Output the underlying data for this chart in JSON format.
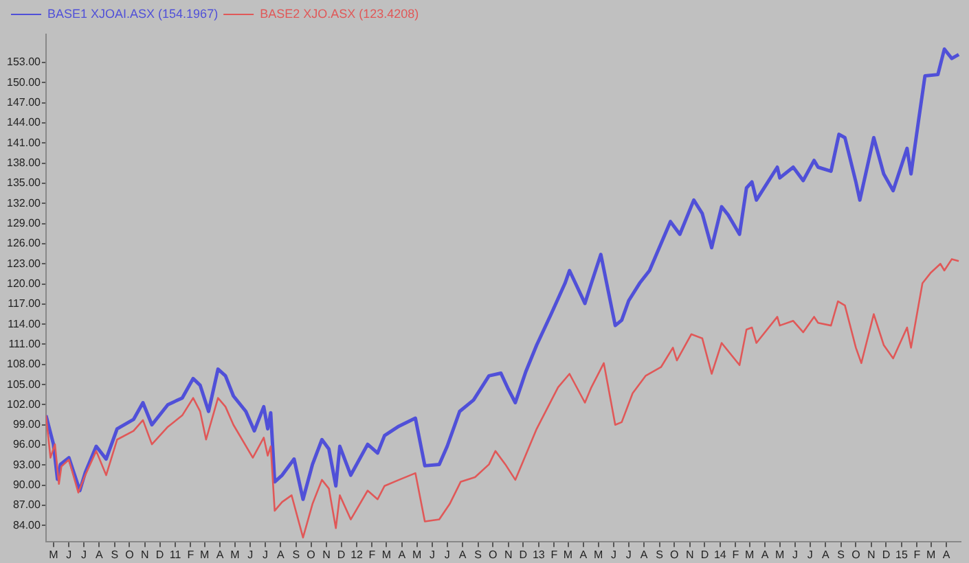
{
  "chart_data": {
    "type": "line",
    "legend": "top left",
    "grid": false,
    "marker": "none",
    "line_style": "solid",
    "xlim": [
      "2010-04-16",
      "2015-04-30"
    ],
    "ylim": [
      81.6,
      157.2
    ],
    "yticks": [
      {
        "value": 84,
        "label": "84.00"
      },
      {
        "value": 87,
        "label": "87.00"
      },
      {
        "value": 90,
        "label": "90.00"
      },
      {
        "value": 93,
        "label": "93.00"
      },
      {
        "value": 96,
        "label": "96.00"
      },
      {
        "value": 99,
        "label": "99.00"
      },
      {
        "value": 102,
        "label": "102.00"
      },
      {
        "value": 105,
        "label": "105.00"
      },
      {
        "value": 108,
        "label": "108.00"
      },
      {
        "value": 111,
        "label": "111.00"
      },
      {
        "value": 114,
        "label": "114.00"
      },
      {
        "value": 117,
        "label": "117.00"
      },
      {
        "value": 120,
        "label": "120.00"
      },
      {
        "value": 123,
        "label": "123.00"
      },
      {
        "value": 126,
        "label": "126.00"
      },
      {
        "value": 129,
        "label": "129.00"
      },
      {
        "value": 132,
        "label": "132.00"
      },
      {
        "value": 135,
        "label": "135.00"
      },
      {
        "value": 138,
        "label": "138.00"
      },
      {
        "value": 141,
        "label": "141.00"
      },
      {
        "value": 144,
        "label": "144.00"
      },
      {
        "value": 147,
        "label": "147.00"
      },
      {
        "value": 150,
        "label": "150.00"
      },
      {
        "value": 153,
        "label": "153.00"
      }
    ],
    "xticks": [
      {
        "value": "2010-05",
        "label": "M"
      },
      {
        "value": "2010-06",
        "label": "J"
      },
      {
        "value": "2010-07",
        "label": "J"
      },
      {
        "value": "2010-08",
        "label": "A"
      },
      {
        "value": "2010-09",
        "label": "S"
      },
      {
        "value": "2010-10",
        "label": "O"
      },
      {
        "value": "2010-11",
        "label": "N"
      },
      {
        "value": "2010-12",
        "label": "D"
      },
      {
        "value": "2011-01",
        "label": "11"
      },
      {
        "value": "2011-02",
        "label": "F"
      },
      {
        "value": "2011-03",
        "label": "M"
      },
      {
        "value": "2011-04",
        "label": "A"
      },
      {
        "value": "2011-05",
        "label": "M"
      },
      {
        "value": "2011-06",
        "label": "J"
      },
      {
        "value": "2011-07",
        "label": "J"
      },
      {
        "value": "2011-08",
        "label": "A"
      },
      {
        "value": "2011-09",
        "label": "S"
      },
      {
        "value": "2011-10",
        "label": "O"
      },
      {
        "value": "2011-11",
        "label": "N"
      },
      {
        "value": "2011-12",
        "label": "D"
      },
      {
        "value": "2012-01",
        "label": "12"
      },
      {
        "value": "2012-02",
        "label": "F"
      },
      {
        "value": "2012-03",
        "label": "M"
      },
      {
        "value": "2012-04",
        "label": "A"
      },
      {
        "value": "2012-05",
        "label": "M"
      },
      {
        "value": "2012-06",
        "label": "J"
      },
      {
        "value": "2012-07",
        "label": "J"
      },
      {
        "value": "2012-08",
        "label": "A"
      },
      {
        "value": "2012-09",
        "label": "S"
      },
      {
        "value": "2012-10",
        "label": "O"
      },
      {
        "value": "2012-11",
        "label": "N"
      },
      {
        "value": "2012-12",
        "label": "D"
      },
      {
        "value": "2013-01",
        "label": "13"
      },
      {
        "value": "2013-02",
        "label": "F"
      },
      {
        "value": "2013-03",
        "label": "M"
      },
      {
        "value": "2013-04",
        "label": "A"
      },
      {
        "value": "2013-05",
        "label": "M"
      },
      {
        "value": "2013-06",
        "label": "J"
      },
      {
        "value": "2013-07",
        "label": "J"
      },
      {
        "value": "2013-08",
        "label": "A"
      },
      {
        "value": "2013-09",
        "label": "S"
      },
      {
        "value": "2013-10",
        "label": "O"
      },
      {
        "value": "2013-11",
        "label": "N"
      },
      {
        "value": "2013-12",
        "label": "D"
      },
      {
        "value": "2014-01",
        "label": "14"
      },
      {
        "value": "2014-02",
        "label": "F"
      },
      {
        "value": "2014-03",
        "label": "M"
      },
      {
        "value": "2014-04",
        "label": "A"
      },
      {
        "value": "2014-05",
        "label": "M"
      },
      {
        "value": "2014-06",
        "label": "J"
      },
      {
        "value": "2014-07",
        "label": "J"
      },
      {
        "value": "2014-08",
        "label": "A"
      },
      {
        "value": "2014-09",
        "label": "S"
      },
      {
        "value": "2014-10",
        "label": "O"
      },
      {
        "value": "2014-11",
        "label": "N"
      },
      {
        "value": "2014-12",
        "label": "D"
      },
      {
        "value": "2015-01",
        "label": "15"
      },
      {
        "value": "2015-02",
        "label": "F"
      },
      {
        "value": "2015-03",
        "label": "M"
      },
      {
        "value": "2015-04",
        "label": "A"
      }
    ],
    "series": [
      {
        "name": "BASE1 XJOAI.ASX (154.1967)",
        "color": "#5050d8",
        "x": [
          "2010-04-16",
          "2010-05-01",
          "2010-05-09",
          "2010-05-15",
          "2010-06-01",
          "2010-06-23",
          "2010-07-04",
          "2010-07-26",
          "2010-08-15",
          "2010-09-06",
          "2010-10-09",
          "2010-10-28",
          "2010-11-15",
          "2010-12-17",
          "2011-01-15",
          "2011-02-06",
          "2011-02-20",
          "2011-03-09",
          "2011-03-28",
          "2011-04-12",
          "2011-04-28",
          "2011-05-23",
          "2011-06-09",
          "2011-06-28",
          "2011-07-06",
          "2011-07-12",
          "2011-07-20",
          "2011-08-04",
          "2011-08-28",
          "2011-09-15",
          "2011-10-04",
          "2011-10-23",
          "2011-11-06",
          "2011-11-20",
          "2011-11-28",
          "2011-12-20",
          "2012-01-23",
          "2012-02-12",
          "2012-02-26",
          "2012-03-26",
          "2012-04-28",
          "2012-05-17",
          "2012-06-15",
          "2012-07-01",
          "2012-07-26",
          "2012-08-23",
          "2012-09-23",
          "2012-10-17",
          "2012-11-01",
          "2012-11-15",
          "2012-12-06",
          "2012-12-28",
          "2013-01-26",
          "2013-02-23",
          "2013-03-04",
          "2013-04-04",
          "2013-04-17",
          "2013-05-06",
          "2013-06-04",
          "2013-06-17",
          "2013-07-01",
          "2013-07-23",
          "2013-08-12",
          "2013-09-23",
          "2013-10-12",
          "2013-11-09",
          "2013-11-26",
          "2013-12-15",
          "2014-01-04",
          "2014-01-17",
          "2014-02-09",
          "2014-02-23",
          "2014-03-06",
          "2014-03-15",
          "2014-04-26",
          "2014-05-01",
          "2014-05-28",
          "2014-06-17",
          "2014-07-09",
          "2014-07-17",
          "2014-08-12",
          "2014-08-28",
          "2014-09-09",
          "2014-10-01",
          "2014-10-09",
          "2014-11-06",
          "2014-11-26",
          "2014-12-15",
          "2015-01-12",
          "2015-01-20",
          "2015-02-04",
          "2015-02-17",
          "2015-03-15",
          "2015-03-28",
          "2015-04-12",
          "2015-04-26"
        ],
        "values": [
          100.4,
          96.1,
          90.9,
          93.1,
          94.1,
          89.2,
          91.9,
          95.8,
          93.9,
          98.4,
          99.8,
          102.3,
          99.0,
          102.0,
          103.0,
          105.9,
          104.9,
          101.0,
          107.3,
          106.3,
          103.3,
          101.0,
          98.1,
          101.7,
          98.4,
          100.8,
          90.5,
          91.5,
          93.9,
          87.9,
          93.1,
          96.8,
          95.4,
          89.9,
          95.8,
          91.5,
          96.1,
          94.8,
          97.4,
          98.8,
          100.0,
          92.9,
          93.1,
          95.8,
          101.0,
          102.7,
          106.3,
          106.7,
          104.3,
          102.3,
          106.9,
          110.9,
          115.5,
          120.1,
          122.0,
          117.1,
          120.1,
          124.4,
          113.8,
          114.6,
          117.5,
          120.1,
          122.0,
          129.3,
          127.4,
          132.5,
          130.5,
          125.4,
          131.5,
          130.3,
          127.4,
          134.3,
          135.2,
          132.5,
          137.4,
          135.8,
          137.4,
          135.4,
          138.4,
          137.4,
          136.8,
          142.3,
          141.8,
          135.2,
          132.5,
          141.8,
          136.4,
          133.9,
          140.2,
          136.4,
          144.3,
          151.0,
          151.2,
          155.0,
          153.6,
          154.2
        ]
      },
      {
        "name": "BASE2 XJO.ASX (123.4208)",
        "color": "#e05858",
        "x": [
          "2010-04-16",
          "2010-04-25",
          "2010-05-04",
          "2010-05-12",
          "2010-05-17",
          "2010-06-01",
          "2010-06-20",
          "2010-07-04",
          "2010-07-26",
          "2010-08-15",
          "2010-09-06",
          "2010-10-09",
          "2010-10-28",
          "2010-11-15",
          "2010-12-17",
          "2011-01-15",
          "2011-02-06",
          "2011-02-20",
          "2011-03-04",
          "2011-03-28",
          "2011-04-12",
          "2011-04-28",
          "2011-06-06",
          "2011-06-28",
          "2011-07-06",
          "2011-07-12",
          "2011-07-20",
          "2011-08-04",
          "2011-08-23",
          "2011-09-15",
          "2011-10-04",
          "2011-10-23",
          "2011-11-06",
          "2011-11-20",
          "2011-11-28",
          "2011-12-20",
          "2012-01-23",
          "2012-02-12",
          "2012-02-26",
          "2012-03-26",
          "2012-04-28",
          "2012-05-17",
          "2012-06-15",
          "2012-07-06",
          "2012-07-28",
          "2012-08-26",
          "2012-09-23",
          "2012-10-06",
          "2012-10-26",
          "2012-11-15",
          "2012-12-28",
          "2013-02-09",
          "2013-03-04",
          "2013-04-04",
          "2013-04-17",
          "2013-05-12",
          "2013-06-04",
          "2013-06-17",
          "2013-07-09",
          "2013-08-04",
          "2013-09-04",
          "2013-09-28",
          "2013-10-06",
          "2013-11-04",
          "2013-11-26",
          "2013-12-15",
          "2014-01-04",
          "2014-02-09",
          "2014-02-23",
          "2014-03-06",
          "2014-03-15",
          "2014-04-26",
          "2014-05-01",
          "2014-05-28",
          "2014-06-17",
          "2014-07-09",
          "2014-07-17",
          "2014-08-12",
          "2014-08-26",
          "2014-09-09",
          "2014-10-01",
          "2014-10-12",
          "2014-11-06",
          "2014-11-26",
          "2014-12-15",
          "2015-01-12",
          "2015-01-20",
          "2015-02-04",
          "2015-02-12",
          "2015-03-01",
          "2015-03-20",
          "2015-03-28",
          "2015-04-12",
          "2015-04-26"
        ],
        "values": [
          100.4,
          94.1,
          96.1,
          90.2,
          92.8,
          93.8,
          88.9,
          91.5,
          95.1,
          91.5,
          96.8,
          98.1,
          99.7,
          96.1,
          98.7,
          100.4,
          103.0,
          101.0,
          96.8,
          103.0,
          101.7,
          99.0,
          94.1,
          97.1,
          94.4,
          95.8,
          86.2,
          87.5,
          88.5,
          82.2,
          87.2,
          90.8,
          89.5,
          83.6,
          88.5,
          84.9,
          89.2,
          87.9,
          89.9,
          90.8,
          91.8,
          84.6,
          84.9,
          87.2,
          90.5,
          91.2,
          93.1,
          95.1,
          93.1,
          90.8,
          98.4,
          104.6,
          106.6,
          102.3,
          104.6,
          108.2,
          99.0,
          99.4,
          103.7,
          106.3,
          107.6,
          110.5,
          108.6,
          112.5,
          111.9,
          106.6,
          111.2,
          107.9,
          113.2,
          113.5,
          111.2,
          115.1,
          113.8,
          114.5,
          112.8,
          115.1,
          114.2,
          113.8,
          117.4,
          116.8,
          110.5,
          108.2,
          115.5,
          110.9,
          108.9,
          113.5,
          110.5,
          116.8,
          120.1,
          121.7,
          123.0,
          122.0,
          123.7,
          123.4
        ]
      }
    ]
  }
}
